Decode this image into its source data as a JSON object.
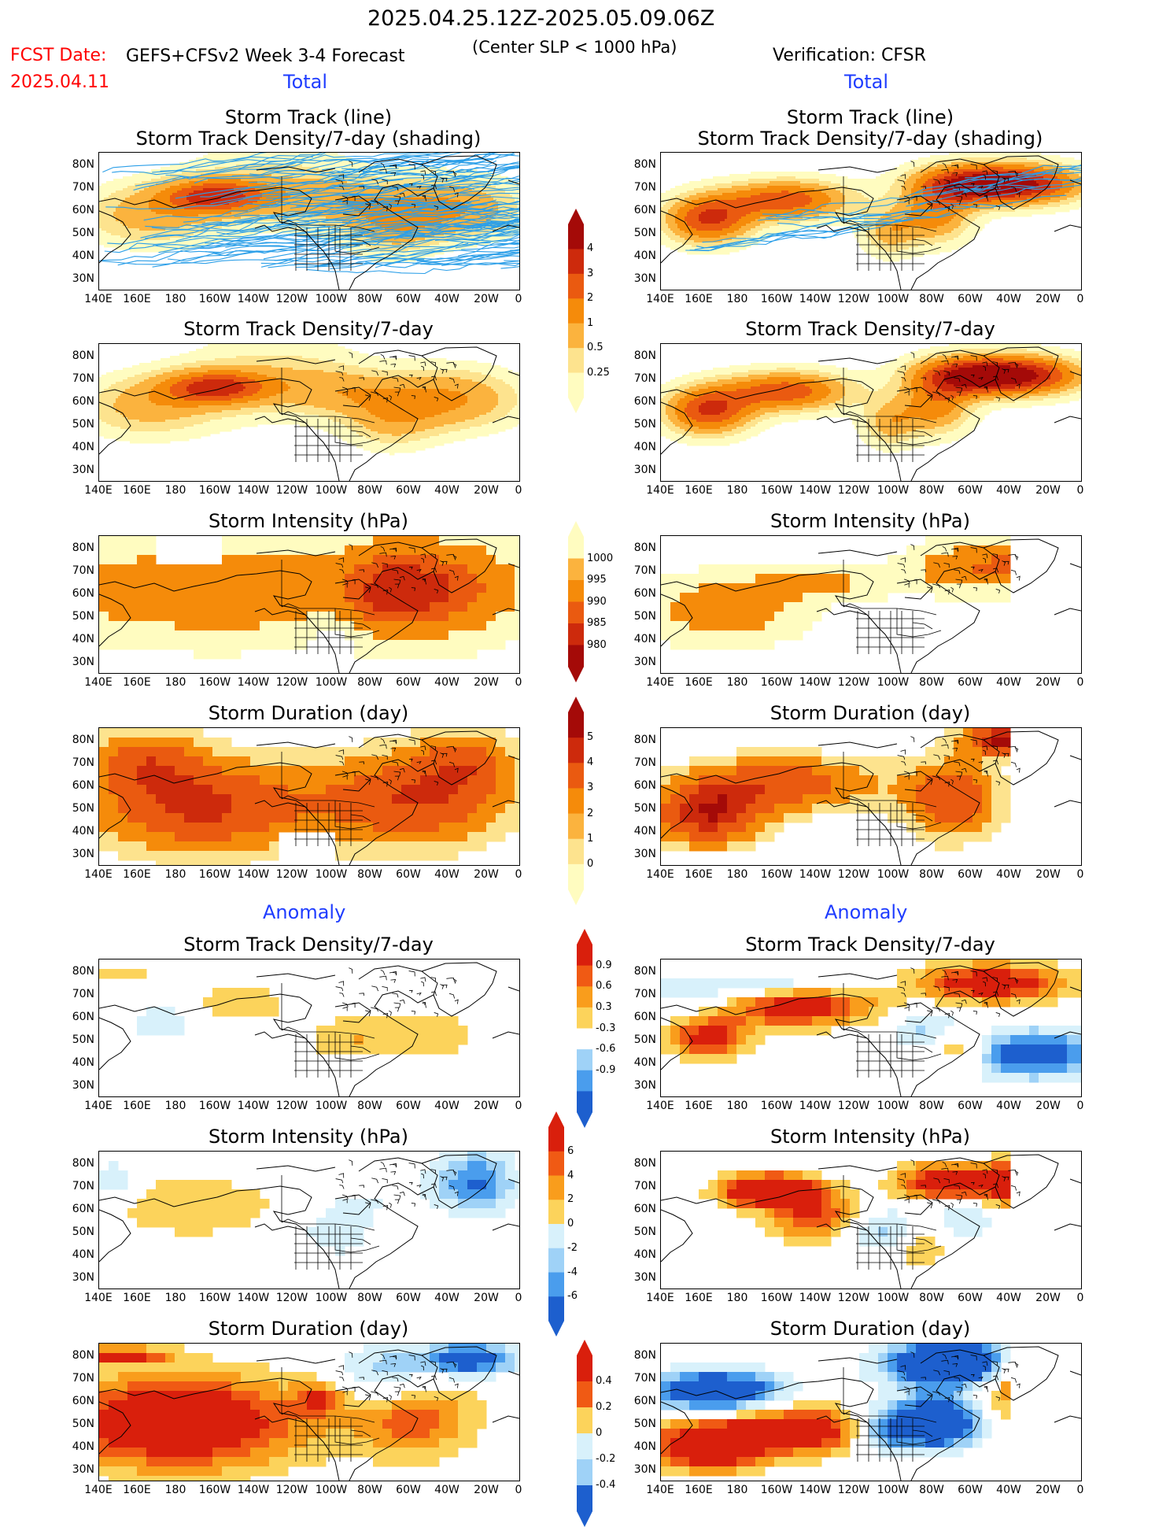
{
  "header": {
    "date_range": "2025.04.25.12Z-2025.05.09.06Z",
    "fcst_label": "FCST Date:",
    "fcst_date": "2025.04.11",
    "model": "GEFS+CFSv2 Week 3-4 Forecast",
    "criterion": "(Center SLP < 1000 hPa)",
    "verification": "Verification: CFSR"
  },
  "sections": {
    "total_left": "Total",
    "total_right": "Total",
    "anomaly_left": "Anomaly",
    "anomaly_right": "Anomaly"
  },
  "panel_titles": {
    "track_line": "Storm Track (line)",
    "track_shading": "Storm Track Density/7-day (shading)",
    "density": "Storm Track Density/7-day",
    "intensity": "Storm Intensity (hPa)",
    "duration": "Storm Duration (day)"
  },
  "axes": {
    "lat_labels": [
      "80N",
      "70N",
      "60N",
      "50N",
      "40N",
      "30N"
    ],
    "lon_labels": [
      "140E",
      "160E",
      "180",
      "160W",
      "140W",
      "120W",
      "100W",
      "80W",
      "60W",
      "40W",
      "20W",
      "0"
    ]
  },
  "colorbars": {
    "density_total": [
      "4",
      "3",
      "2",
      "1",
      "0.5",
      "0.25"
    ],
    "intensity_total": [
      "1000",
      "995",
      "990",
      "985",
      "980"
    ],
    "duration_total": [
      "5",
      "4",
      "3",
      "2",
      "1",
      "0"
    ],
    "density_anom": [
      "0.9",
      "0.6",
      "0.3",
      "-0.3",
      "-0.6",
      "-0.9"
    ],
    "intensity_anom": [
      "6",
      "4",
      "2",
      "0",
      "-2",
      "-4",
      "-6"
    ],
    "duration_anom": [
      "0.4",
      "0.2",
      "0",
      "-0.2",
      "-0.4"
    ]
  },
  "colors": {
    "seq": [
      "#fffcc0",
      "#fde38e",
      "#fbb33e",
      "#f58b0a",
      "#ea5a10",
      "#cd2a0c",
      "#a40a08"
    ],
    "div": [
      "#1d5fce",
      "#4a9ded",
      "#9fd2f7",
      "#d8f1fb",
      "#ffffff",
      "#fff3b0",
      "#fcd35b",
      "#f99d1c",
      "#f05a14",
      "#d91f0c"
    ],
    "track": "#2c9fe8",
    "title_red": "#ff0000",
    "title_blue": "#1f3dff"
  }
}
